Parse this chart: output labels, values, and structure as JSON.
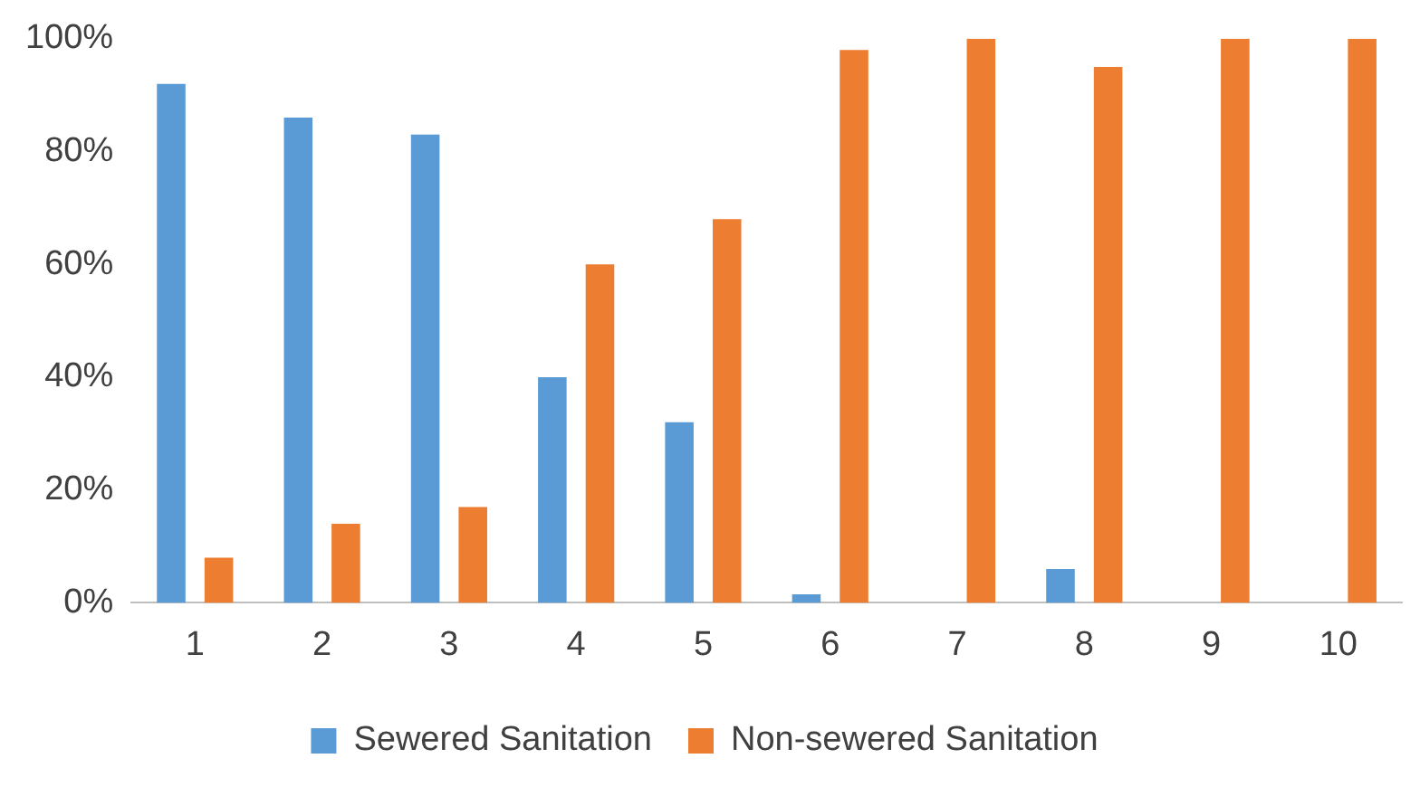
{
  "chart_data": {
    "type": "bar",
    "categories": [
      "1",
      "2",
      "3",
      "4",
      "5",
      "6",
      "7",
      "8",
      "9",
      "10"
    ],
    "series": [
      {
        "name": "Sewered Sanitation",
        "color": "#5b9bd5",
        "values": [
          92,
          86,
          83,
          40,
          32,
          1.5,
          0,
          6,
          0,
          0
        ]
      },
      {
        "name": "Non-sewered Sanitation",
        "color": "#ed7d31",
        "values": [
          8,
          14,
          17,
          60,
          68,
          98,
          100,
          95,
          100,
          100
        ]
      }
    ],
    "ylim": [
      0,
      100
    ],
    "yticks": [
      {
        "value": 0,
        "label": "0%"
      },
      {
        "value": 20,
        "label": "20%"
      },
      {
        "value": 40,
        "label": "40%"
      },
      {
        "value": 60,
        "label": "60%"
      },
      {
        "value": 80,
        "label": "80%"
      },
      {
        "value": 100,
        "label": "100%"
      }
    ],
    "grid": false,
    "legend": "bottom"
  }
}
